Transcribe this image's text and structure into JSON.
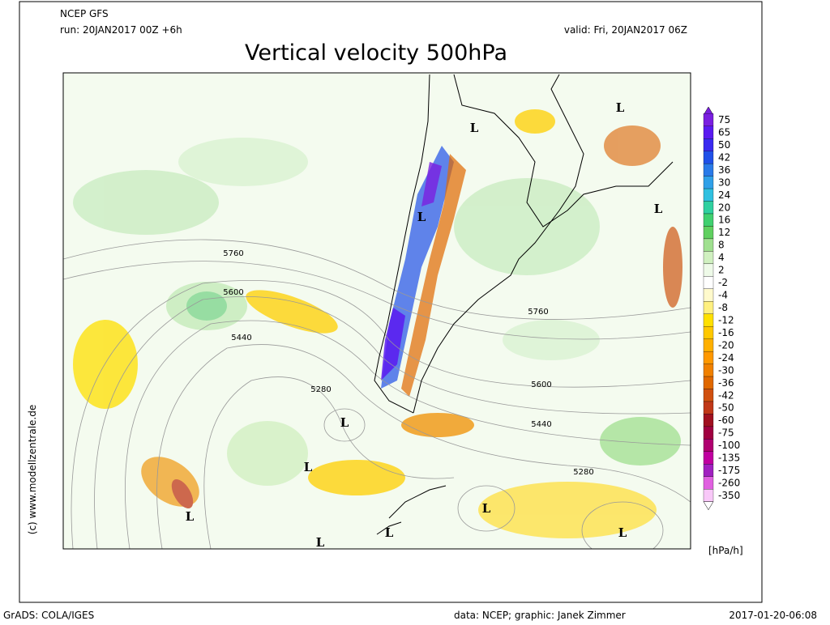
{
  "header": {
    "model": "NCEP GFS",
    "run": "run: 20JAN2017 00Z +6h",
    "valid": "valid: Fri, 20JAN2017 06Z",
    "title": "Vertical velocity 500hPa"
  },
  "credit": "(c) www.modellzentrale.de",
  "legend": {
    "unit": "[hPa/h]",
    "levels": [
      {
        "value": 75,
        "color": "#7a1fe0"
      },
      {
        "value": 65,
        "color": "#5a1af0"
      },
      {
        "value": 50,
        "color": "#3a2af0"
      },
      {
        "value": 42,
        "color": "#2050e8"
      },
      {
        "value": 36,
        "color": "#2a7ae8"
      },
      {
        "value": 30,
        "color": "#30a0e8"
      },
      {
        "value": 24,
        "color": "#30c0e0"
      },
      {
        "value": 20,
        "color": "#30d0a0"
      },
      {
        "value": 16,
        "color": "#40d070"
      },
      {
        "value": 12,
        "color": "#60d060"
      },
      {
        "value": 8,
        "color": "#a0e090"
      },
      {
        "value": 4,
        "color": "#d0f0c0"
      },
      {
        "value": 2,
        "color": "#eefae8"
      },
      {
        "value": -2,
        "color": "#ffffff"
      },
      {
        "value": -4,
        "color": "#fffacc"
      },
      {
        "value": -8,
        "color": "#fff080"
      },
      {
        "value": -12,
        "color": "#ffe000"
      },
      {
        "value": -16,
        "color": "#ffc800"
      },
      {
        "value": -20,
        "color": "#ffb000"
      },
      {
        "value": -24,
        "color": "#ff9800"
      },
      {
        "value": -30,
        "color": "#f08000"
      },
      {
        "value": -36,
        "color": "#e06800"
      },
      {
        "value": -42,
        "color": "#d05010"
      },
      {
        "value": -50,
        "color": "#c03818"
      },
      {
        "value": -60,
        "color": "#a01020"
      },
      {
        "value": -75,
        "color": "#a00040"
      },
      {
        "value": -100,
        "color": "#b00070"
      },
      {
        "value": -135,
        "color": "#c000a0"
      },
      {
        "value": -175,
        "color": "#a020c0"
      },
      {
        "value": -260,
        "color": "#e060e0"
      },
      {
        "value": -350,
        "color": "#f8c8f8"
      }
    ]
  },
  "contour_labels": [
    5760,
    5600,
    5440,
    5280,
    5760,
    5600,
    5440,
    5280
  ],
  "lows": [
    "L",
    "L",
    "L",
    "L",
    "L",
    "L",
    "L",
    "L",
    "L",
    "L",
    "L"
  ],
  "footer": {
    "software": "GrADS: COLA/IGES",
    "credit": "data: NCEP; graphic: Janek Zimmer",
    "timestamp": "2017-01-20-06:08"
  }
}
